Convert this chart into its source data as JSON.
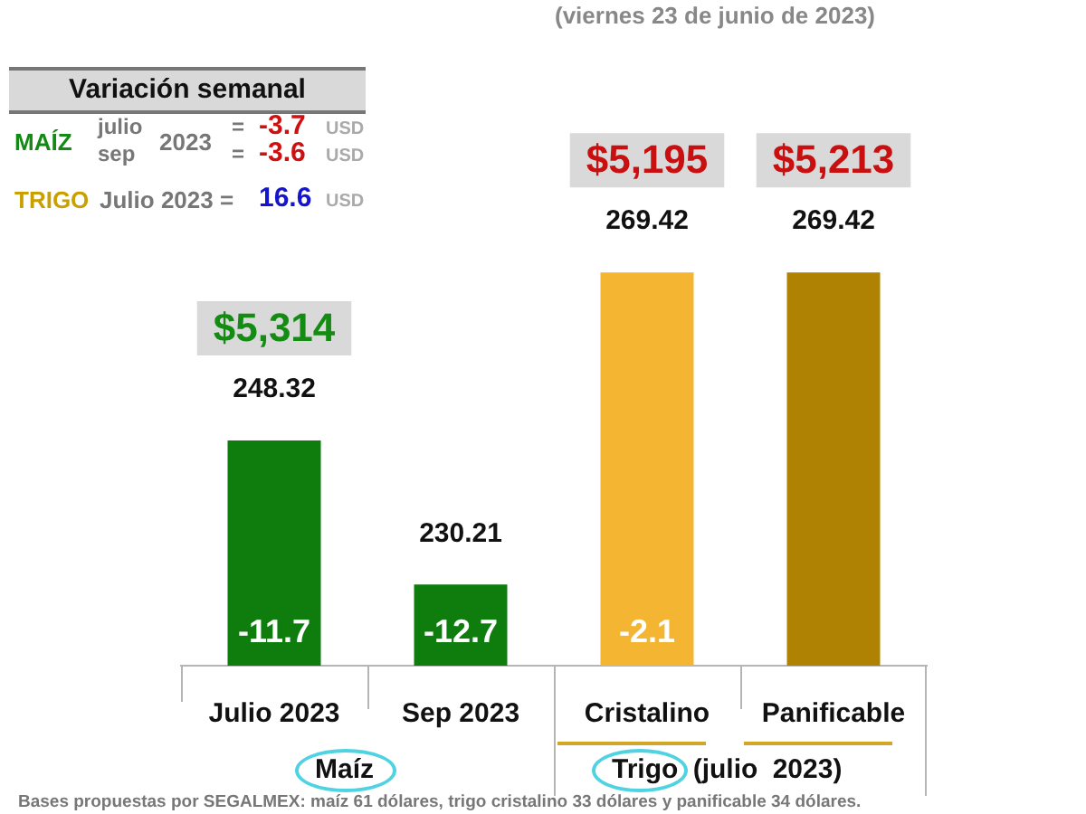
{
  "chart_data": {
    "type": "bar",
    "title": "(viernes 23 de junio de 2023)",
    "categories": [
      "Julio 2023",
      "Sep 2023",
      "Cristalino",
      "Panificable"
    ],
    "values": [
      248.32,
      230.21,
      269.42,
      269.42
    ],
    "colors": [
      "#0e7d0e",
      "#0e7d0e",
      "#f4b532",
      "#b08204"
    ],
    "tick_labels": "x",
    "data_labels": true,
    "annotations": [
      "Variación semanal",
      "MAÍZ",
      "julio",
      "sep",
      "2023",
      "=",
      "-3.7",
      "USD",
      "=",
      "-3.6",
      "USD",
      "TRIGO",
      "Julio 2023 =",
      "16.6",
      "USD",
      "Maíz",
      "Trigo (julio 2023)",
      "Bases propuestas por SEGALMEX: maíz 61 dólares, trigo cristalino 33 dólares y panificable 34 dólares.",
      "$5,314",
      "$5,195",
      "$5,213",
      "-11.7",
      "-12.7",
      "-2.1"
    ]
  }
}
